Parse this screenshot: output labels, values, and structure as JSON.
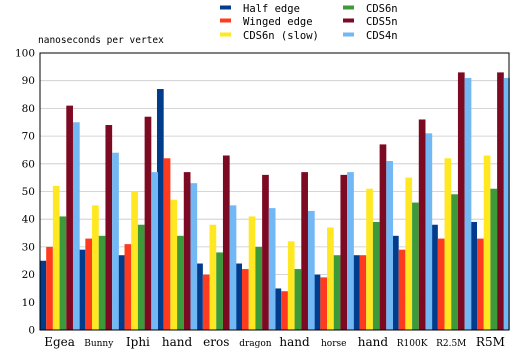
{
  "chart_data": {
    "type": "bar",
    "ylabel": "nanoseconds per vertex",
    "ylim": [
      0,
      100
    ],
    "yticks": [
      0,
      10,
      20,
      30,
      40,
      50,
      60,
      70,
      80,
      90,
      100
    ],
    "grid": true,
    "legend_position": "top-right",
    "categories": [
      "Egea",
      "Bunny",
      "Iphi",
      "hand",
      "eros",
      "dragon",
      "hand",
      "horse",
      "hand",
      "R100K",
      "R2.5M",
      "R5M"
    ],
    "series": [
      {
        "name": "Half edge",
        "color": "#003b8c",
        "values": [
          25,
          29,
          27,
          87,
          24,
          24,
          15,
          20,
          27,
          34,
          38,
          39
        ]
      },
      {
        "name": "Winged edge",
        "color": "#ff3b1f",
        "values": [
          30,
          33,
          31,
          62,
          20,
          22,
          14,
          19,
          27,
          29,
          33,
          33
        ]
      },
      {
        "name": "CDS6n (slow)",
        "color": "#ffe822",
        "values": [
          52,
          45,
          50,
          47,
          38,
          41,
          32,
          37,
          51,
          55,
          62,
          63
        ]
      },
      {
        "name": "CDS6n",
        "color": "#3c9a3a",
        "values": [
          41,
          34,
          38,
          34,
          28,
          30,
          22,
          27,
          39,
          46,
          49,
          51
        ]
      },
      {
        "name": "CDS5n",
        "color": "#7d0a23",
        "values": [
          81,
          74,
          77,
          57,
          63,
          56,
          57,
          56,
          67,
          76,
          93,
          93
        ]
      },
      {
        "name": "CDS4n",
        "color": "#72b8f4",
        "values": [
          75,
          64,
          57,
          53,
          45,
          44,
          43,
          57,
          61,
          71,
          91,
          91
        ]
      }
    ]
  }
}
